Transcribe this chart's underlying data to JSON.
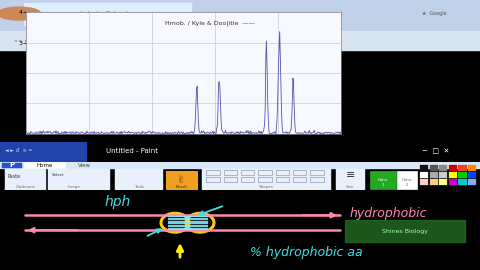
{
  "bg_color": "#000000",
  "browser_bar_color": "#3a6eaa",
  "browser_tab_color": "#b8cfe8",
  "browser_url_bg": "#e8f0fa",
  "chart_bg": "#f0f4fa",
  "paint_title_bg": "#1a3a78",
  "paint_toolbar_bg": "#dce8f8",
  "paint_tab_bg": "#c8dcf0",
  "paint_brush_color": "#f0a020",
  "paint_green_color": "#22aa22",
  "title_text": "Hmob. / Kyle & Doo|itle  ——",
  "line_color": "#5555aa",
  "grid_color": "#bbbbcc",
  "annotation_hydrophobic": "hydrophobic",
  "annotation_aa": "% hydrophobic aa",
  "annotation_hph": "hph",
  "oval_color": "#ffcc00",
  "helix_color": "#88eeff",
  "pink_color": "#ff88aa",
  "cyan_color": "#44dddd",
  "yellow_color": "#ffee00",
  "green_bio": "#226622",
  "pink_arrow": "#ff88aa"
}
